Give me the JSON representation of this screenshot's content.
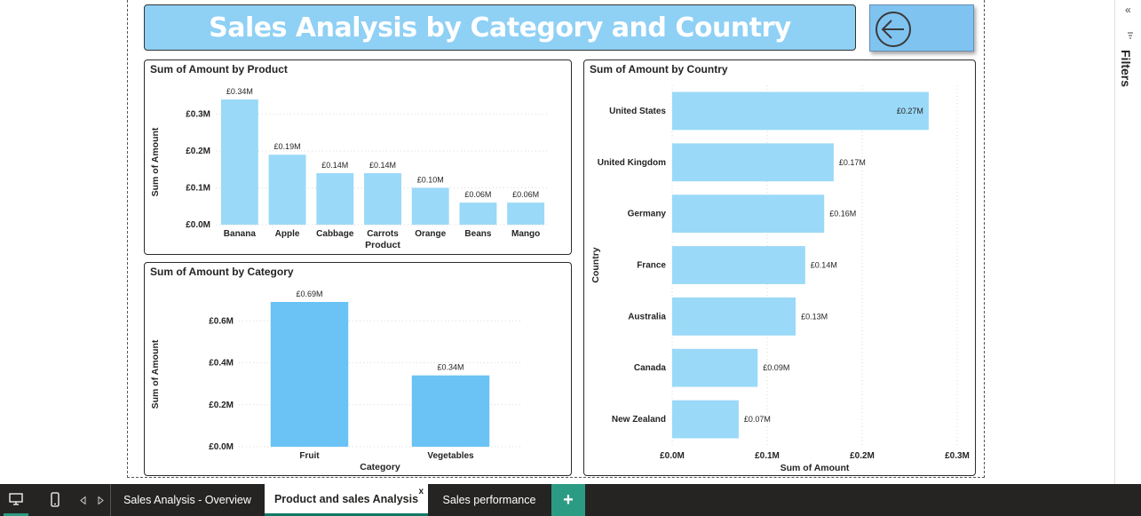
{
  "report": {
    "title": "Sales Analysis by Category and Country"
  },
  "filters_pane": {
    "collapse_glyph": "«",
    "label": "Filters"
  },
  "pages": {
    "tabs": [
      {
        "label": "Sales Analysis - Overview",
        "active": false
      },
      {
        "label": "Product and sales Analysis",
        "active": true,
        "close": "x"
      },
      {
        "label": "Sales performance",
        "active": false
      }
    ],
    "add_label": "+"
  },
  "colors": {
    "bar_light": "#9ad9f8",
    "bar_category": "#6ac2f5",
    "title_bg": "#8fd0f5",
    "active_tab_underline": "#117865"
  },
  "chart_data": [
    {
      "id": "product",
      "type": "bar",
      "title": "Sum of Amount by Product",
      "xlabel": "Product",
      "ylabel": "Sum of Amount",
      "categories": [
        "Banana",
        "Apple",
        "Cabbage",
        "Carrots",
        "Orange",
        "Beans",
        "Mango"
      ],
      "values": [
        0.34,
        0.19,
        0.14,
        0.14,
        0.1,
        0.06,
        0.06
      ],
      "data_labels": [
        "£0.34M",
        "£0.19M",
        "£0.14M",
        "£0.14M",
        "£0.10M",
        "£0.06M",
        "£0.06M"
      ],
      "ylim": [
        0,
        0.34
      ],
      "yticks": [
        0,
        0.1,
        0.2,
        0.3
      ],
      "ytick_labels": [
        "£0.0M",
        "£0.1M",
        "£0.2M",
        "£0.3M"
      ],
      "grid": true
    },
    {
      "id": "category",
      "type": "bar",
      "title": "Sum of Amount by Category",
      "xlabel": "Category",
      "ylabel": "Sum of Amount",
      "categories": [
        "Fruit",
        "Vegetables"
      ],
      "values": [
        0.69,
        0.34
      ],
      "data_labels": [
        "£0.69M",
        "£0.34M"
      ],
      "ylim": [
        0,
        0.69
      ],
      "yticks": [
        0,
        0.2,
        0.4,
        0.6
      ],
      "ytick_labels": [
        "£0.0M",
        "£0.2M",
        "£0.4M",
        "£0.6M"
      ],
      "grid": true
    },
    {
      "id": "country",
      "type": "bar",
      "orientation": "horizontal",
      "title": "Sum of Amount by Country",
      "xlabel": "Sum of Amount",
      "ylabel": "Country",
      "categories": [
        "United States",
        "United Kingdom",
        "Germany",
        "France",
        "Australia",
        "Canada",
        "New Zealand"
      ],
      "values": [
        0.27,
        0.17,
        0.16,
        0.14,
        0.13,
        0.09,
        0.07
      ],
      "data_labels": [
        "£0.27M",
        "£0.17M",
        "£0.16M",
        "£0.14M",
        "£0.13M",
        "£0.09M",
        "£0.07M"
      ],
      "xlim": [
        0,
        0.3
      ],
      "xticks": [
        0,
        0.1,
        0.2,
        0.3
      ],
      "xtick_labels": [
        "£0.0M",
        "£0.1M",
        "£0.2M",
        "£0.3M"
      ],
      "grid": true
    }
  ]
}
